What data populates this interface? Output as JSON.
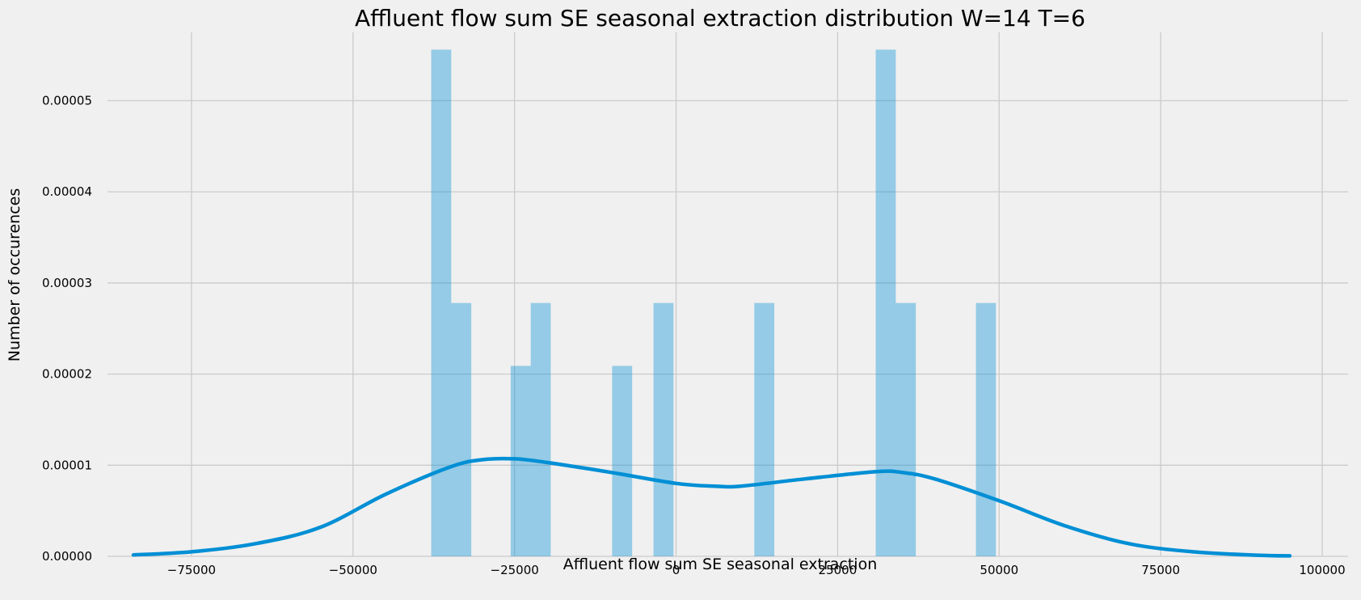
{
  "chart_data": {
    "type": "histogram_with_kde",
    "title": "Affluent flow sum SE seasonal extraction distribution W=14 T=6",
    "xlabel": "Affluent flow sum SE seasonal extraction",
    "ylabel": "Number of occurences",
    "xlim": [
      -88000,
      104000
    ],
    "ylim": [
      0,
      5.75e-05
    ],
    "grid": true,
    "x_ticks": [
      -75000,
      -50000,
      -25000,
      0,
      25000,
      50000,
      75000,
      100000
    ],
    "x_tick_labels": [
      "−75000",
      "−50000",
      "−25000",
      "0",
      "25000",
      "50000",
      "75000",
      "100000"
    ],
    "y_ticks": [
      0,
      1e-05,
      2e-05,
      3e-05,
      4e-05,
      5e-05
    ],
    "y_tick_labels": [
      "0.00000",
      "0.00001",
      "0.00002",
      "0.00003",
      "0.00004",
      "0.00005"
    ],
    "bin_width": 3100,
    "bins": [
      {
        "x0": -37900,
        "x1": -34800,
        "density": 5.56e-05
      },
      {
        "x0": -34800,
        "x1": -31700,
        "density": 2.78e-05
      },
      {
        "x0": -25600,
        "x1": -22500,
        "density": 2.09e-05
      },
      {
        "x0": -22500,
        "x1": -19400,
        "density": 2.78e-05
      },
      {
        "x0": -9900,
        "x1": -6800,
        "density": 2.09e-05
      },
      {
        "x0": -3500,
        "x1": -400,
        "density": 2.78e-05
      },
      {
        "x0": 12100,
        "x1": 15200,
        "density": 2.78e-05
      },
      {
        "x0": 30900,
        "x1": 34000,
        "density": 5.56e-05
      },
      {
        "x0": 34000,
        "x1": 37100,
        "density": 2.78e-05
      },
      {
        "x0": 46400,
        "x1": 49500,
        "density": 2.78e-05
      }
    ],
    "kde": {
      "x": [
        -84000,
        -75000,
        -65000,
        -55000,
        -45000,
        -35000,
        -30000,
        -25000,
        -20000,
        -10000,
        0,
        6000,
        10000,
        20000,
        31000,
        35000,
        40000,
        50000,
        60000,
        70000,
        80000,
        90000,
        95000
      ],
      "y": [
        1.5e-07,
        5e-07,
        1.4e-06,
        3.2e-06,
        6.8e-06,
        9.8e-06,
        1.06e-05,
        1.07e-05,
        1.03e-05,
        9.2e-06,
        8e-06,
        7.7e-06,
        7.7e-06,
        8.5e-06,
        9.3e-06,
        9.2e-06,
        8.5e-06,
        6.1e-06,
        3.4e-06,
        1.4e-06,
        5e-07,
        1.2e-07,
        5e-08
      ]
    },
    "colors": {
      "bars": "#008fd5",
      "kde_line": "#008fd5",
      "grid": "#cbcbcb",
      "background": "#f0f0f0"
    }
  }
}
